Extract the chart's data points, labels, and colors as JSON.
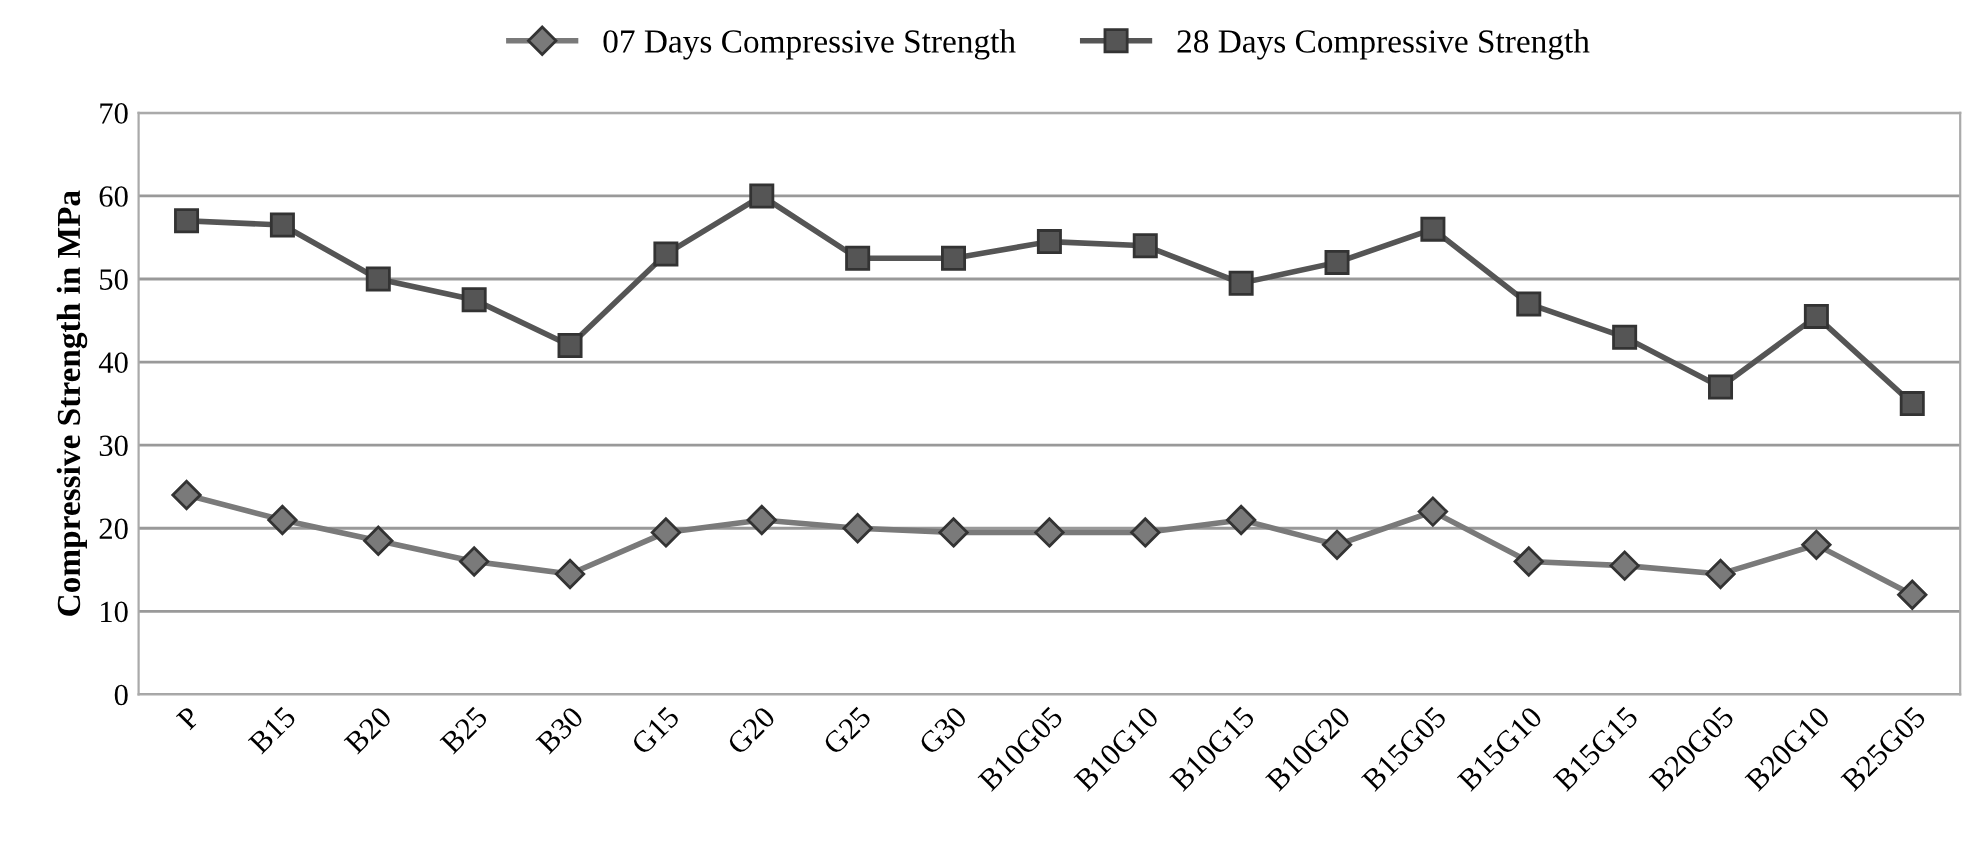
{
  "chart_data": {
    "type": "line",
    "ylabel": "Compressive Strength in MPa",
    "categories": [
      "P",
      "B15",
      "B20",
      "B25",
      "B30",
      "G15",
      "G20",
      "G25",
      "G30",
      "B10G05",
      "B10G10",
      "B10G15",
      "B10G20",
      "B15G05",
      "B15G10",
      "B15G15",
      "B20G05",
      "B20G10",
      "B25G05"
    ],
    "series": [
      {
        "name": "07 Days Compressive Strength",
        "color": "#7a7a7a",
        "marker": "diamond",
        "values": [
          24,
          21,
          18.5,
          16,
          14.5,
          19.5,
          21,
          20,
          19.5,
          19.5,
          19.5,
          21,
          18,
          22,
          16,
          15.5,
          14.5,
          18,
          12
        ]
      },
      {
        "name": "28 Days Compressive Strength",
        "color": "#555555",
        "marker": "square",
        "values": [
          57,
          56.5,
          50,
          47.5,
          42,
          53,
          60,
          52.5,
          52.5,
          54.5,
          54,
          49.5,
          52,
          56,
          47,
          43,
          37,
          45.5,
          35
        ]
      }
    ],
    "ylim": [
      0,
      70
    ],
    "yticks": [
      0,
      10,
      20,
      30,
      40,
      50,
      60,
      70
    ],
    "grid": "y",
    "legend": "top"
  }
}
